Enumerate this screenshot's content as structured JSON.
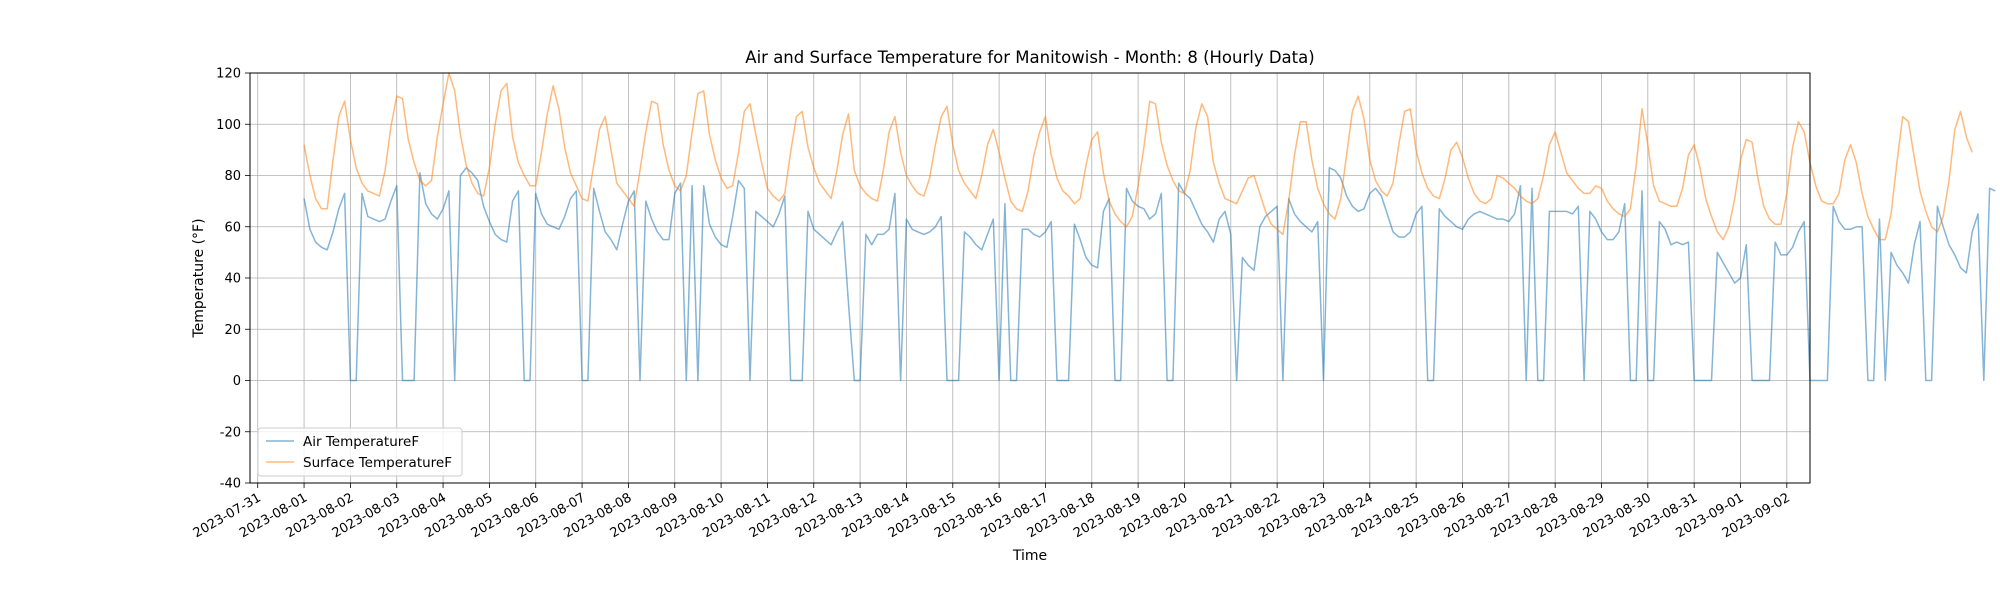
{
  "chart_data": {
    "type": "line",
    "title": "Air and Surface Temperature for Manitowish - Month: 8 (Hourly Data)",
    "xlabel": "Time",
    "ylabel": "Temperature (°F)",
    "ylim": [
      -40,
      120
    ],
    "yticks": [
      -40,
      -20,
      0,
      20,
      40,
      60,
      80,
      100,
      120
    ],
    "xlim": [
      "2023-07-30T20:00",
      "2023-09-02T12:00"
    ],
    "xticks": [
      "2023-07-31",
      "2023-08-01",
      "2023-08-02",
      "2023-08-03",
      "2023-08-04",
      "2023-08-05",
      "2023-08-06",
      "2023-08-07",
      "2023-08-08",
      "2023-08-09",
      "2023-08-10",
      "2023-08-11",
      "2023-08-12",
      "2023-08-13",
      "2023-08-14",
      "2023-08-15",
      "2023-08-16",
      "2023-08-17",
      "2023-08-18",
      "2023-08-19",
      "2023-08-20",
      "2023-08-21",
      "2023-08-22",
      "2023-08-23",
      "2023-08-24",
      "2023-08-25",
      "2023-08-26",
      "2023-08-27",
      "2023-08-28",
      "2023-08-29",
      "2023-08-30",
      "2023-08-31",
      "2023-09-01",
      "2023-09-02"
    ],
    "grid": true,
    "legend_position": "lower-left",
    "series": [
      {
        "name": "Air TemperatureF",
        "color": "#1f77b4",
        "x_start": "2023-08-01T00:00",
        "x_step_hours": 3,
        "values": [
          71,
          59,
          54,
          52,
          51,
          58,
          67,
          73,
          0,
          0,
          73,
          64,
          63,
          62,
          63,
          70,
          76,
          0,
          0,
          0,
          81,
          69,
          65,
          63,
          67,
          74,
          0,
          80,
          83,
          81,
          78,
          68,
          62,
          57,
          55,
          54,
          70,
          74,
          0,
          0,
          73,
          65,
          61,
          60,
          59,
          64,
          71,
          74,
          0,
          0,
          75,
          66,
          58,
          55,
          51,
          61,
          70,
          74,
          0,
          70,
          63,
          58,
          55,
          55,
          73,
          77,
          0,
          76,
          0,
          76,
          61,
          56,
          53,
          52,
          64,
          78,
          75,
          0,
          66,
          64,
          62,
          60,
          65,
          72,
          0,
          0,
          0,
          66,
          59,
          57,
          55,
          53,
          58,
          62,
          30,
          0,
          0,
          57,
          53,
          57,
          57,
          59,
          73,
          0,
          63,
          59,
          58,
          57,
          58,
          60,
          64,
          0,
          0,
          0,
          58,
          56,
          53,
          51,
          57,
          63,
          0,
          69,
          0,
          0,
          59,
          59,
          57,
          56,
          58,
          62,
          0,
          0,
          0,
          61,
          55,
          48,
          45,
          44,
          66,
          71,
          0,
          0,
          75,
          70,
          68,
          67,
          63,
          65,
          73,
          0,
          0,
          77,
          73,
          71,
          66,
          61,
          58,
          54,
          63,
          66,
          57,
          0,
          48,
          45,
          43,
          60,
          64,
          66,
          68,
          0,
          71,
          65,
          62,
          60,
          58,
          62,
          0,
          83,
          82,
          79,
          72,
          68,
          66,
          67,
          73,
          75,
          72,
          65,
          58,
          56,
          56,
          58,
          65,
          68,
          0,
          0,
          67,
          64,
          62,
          60,
          59,
          63,
          65,
          66,
          65,
          64,
          63,
          63,
          62,
          65,
          76,
          0,
          75,
          0,
          0,
          66,
          66,
          66,
          66,
          65,
          68,
          0,
          66,
          63,
          58,
          55,
          55,
          58,
          69,
          0,
          0,
          74,
          0,
          0,
          62,
          59,
          53,
          54,
          53,
          54,
          0,
          0,
          0,
          0,
          50,
          46,
          42,
          38,
          40,
          53,
          0,
          0,
          0,
          0,
          54,
          49,
          49,
          52,
          58,
          62,
          0,
          0,
          0,
          0,
          68,
          62,
          59,
          59,
          60,
          60,
          0,
          0,
          63,
          0,
          50,
          45,
          42,
          38,
          53,
          62,
          0,
          0,
          68,
          60,
          53,
          49,
          44,
          42,
          58,
          65,
          0,
          75,
          74
        ]
      },
      {
        "name": "Surface TemperatureF",
        "color": "#ff7f0e",
        "x_start": "2023-08-01T00:00",
        "x_step_hours": 3,
        "values": [
          92,
          80,
          71,
          67,
          67,
          86,
          103,
          109,
          94,
          83,
          77,
          74,
          73,
          72,
          82,
          99,
          111,
          110,
          94,
          85,
          78,
          76,
          78,
          95,
          108,
          120,
          113,
          96,
          84,
          77,
          73,
          72,
          83,
          100,
          113,
          116,
          95,
          85,
          80,
          76,
          76,
          89,
          104,
          115,
          106,
          91,
          81,
          76,
          71,
          70,
          84,
          98,
          103,
          90,
          77,
          74,
          71,
          68,
          82,
          97,
          109,
          108,
          92,
          82,
          76,
          74,
          80,
          97,
          112,
          113,
          96,
          86,
          79,
          75,
          76,
          89,
          105,
          108,
          96,
          85,
          75,
          72,
          70,
          73,
          89,
          103,
          105,
          91,
          83,
          77,
          74,
          71,
          82,
          96,
          104,
          82,
          76,
          73,
          71,
          70,
          82,
          97,
          103,
          89,
          80,
          76,
          73,
          72,
          79,
          92,
          103,
          107,
          92,
          82,
          77,
          74,
          71,
          80,
          92,
          98,
          89,
          79,
          70,
          67,
          66,
          74,
          88,
          97,
          103,
          88,
          79,
          74,
          72,
          69,
          71,
          84,
          94,
          97,
          81,
          70,
          65,
          62,
          60,
          64,
          76,
          91,
          109,
          108,
          93,
          84,
          78,
          74,
          73,
          82,
          99,
          108,
          103,
          85,
          77,
          71,
          70,
          69,
          74,
          79,
          80,
          73,
          66,
          61,
          59,
          57,
          70,
          88,
          101,
          101,
          86,
          75,
          69,
          65,
          63,
          71,
          88,
          105,
          111,
          102,
          86,
          78,
          74,
          72,
          77,
          92,
          105,
          106,
          90,
          81,
          75,
          72,
          71,
          79,
          90,
          93,
          87,
          79,
          73,
          70,
          69,
          71,
          80,
          79,
          77,
          75,
          72,
          70,
          69,
          71,
          80,
          92,
          97,
          89,
          81,
          78,
          75,
          73,
          73,
          76,
          75,
          70,
          67,
          65,
          64,
          67,
          84,
          106,
          92,
          76,
          70,
          69,
          68,
          68,
          75,
          88,
          92,
          83,
          71,
          64,
          58,
          55,
          60,
          71,
          86,
          94,
          93,
          79,
          68,
          63,
          61,
          61,
          73,
          91,
          101,
          97,
          85,
          76,
          70,
          69,
          69,
          73,
          86,
          92,
          85,
          73,
          64,
          59,
          55,
          55,
          65,
          85,
          103,
          101,
          87,
          74,
          66,
          60,
          58,
          64,
          78,
          98,
          105,
          95,
          89
        ]
      }
    ]
  }
}
